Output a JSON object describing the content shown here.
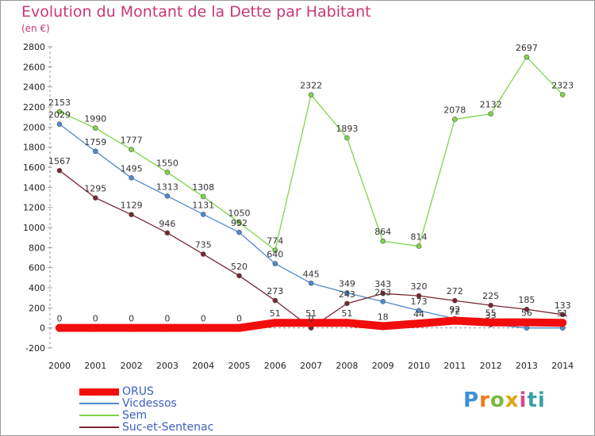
{
  "header": {
    "title": "Evolution du Montant de la Dette par Habitant",
    "unit": "(en €)"
  },
  "logo": {
    "text": "Proxiti"
  },
  "chart_data": {
    "type": "line",
    "title": "Evolution du Montant de la Dette par Habitant",
    "ylabel": "(en €)",
    "categories": [
      "2000",
      "2001",
      "2002",
      "2003",
      "2004",
      "2005",
      "2006",
      "2007",
      "2008",
      "2009",
      "2010",
      "2011",
      "2012",
      "2013",
      "2014"
    ],
    "ylim": [
      -200,
      2800
    ],
    "yticks": [
      "2800",
      "2600",
      "2400",
      "2200",
      "2000",
      "1800",
      "1600",
      "1400",
      "1200",
      "1000",
      "800",
      "600",
      "400",
      "200",
      "0",
      "-200"
    ],
    "grid": false,
    "legend_position": "bottom-left",
    "series": [
      {
        "name": "ORUS",
        "color": "#f20d0d",
        "width": 10,
        "values": [
          0,
          0,
          0,
          0,
          0,
          0,
          51,
          51,
          51,
          18,
          44,
          72,
          55,
          56,
          51
        ],
        "labels": [
          "0",
          "0",
          "0",
          "0",
          "0",
          "0",
          "51",
          "51",
          "51",
          "18",
          "44",
          "72",
          "55",
          "56",
          "51"
        ]
      },
      {
        "name": "Vicdessos",
        "color": "#4f8ad0",
        "width": 1.3,
        "values": [
          2029,
          1759,
          1495,
          1313,
          1131,
          952,
          640,
          445,
          349,
          263,
          173,
          92,
          33,
          0,
          0
        ],
        "labels": [
          "2029",
          "1759",
          "1495",
          "1313",
          "1131",
          "952",
          "640",
          "445",
          "349",
          "263",
          "173",
          "92",
          "33",
          "",
          ""
        ]
      },
      {
        "name": "Sem",
        "color": "#7ed54a",
        "width": 1.3,
        "values": [
          2153,
          1990,
          1777,
          1550,
          1308,
          1050,
          774,
          2322,
          1893,
          864,
          814,
          2078,
          2132,
          2697,
          2323
        ],
        "labels": [
          "2153",
          "1990",
          "1777",
          "1550",
          "1308",
          "1050",
          "774",
          "2322",
          "1893",
          "864",
          "814",
          "2078",
          "2132",
          "2697",
          "2323"
        ]
      },
      {
        "name": "Suc-et-Sentenac",
        "color": "#7a2630",
        "width": 1.3,
        "values": [
          1567,
          1295,
          1129,
          946,
          735,
          520,
          273,
          0,
          243,
          343,
          320,
          272,
          225,
          185,
          133
        ],
        "labels": [
          "1567",
          "1295",
          "1129",
          "946",
          "735",
          "520",
          "273",
          "0",
          "243",
          "343",
          "320",
          "272",
          "225",
          "185",
          "133"
        ]
      }
    ]
  }
}
